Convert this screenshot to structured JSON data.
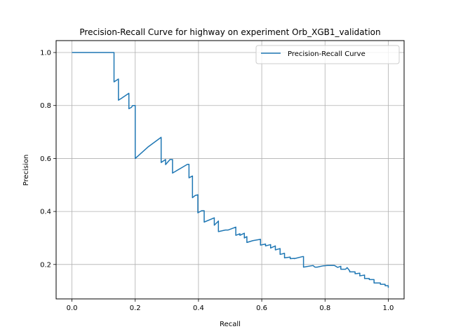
{
  "chart_data": {
    "type": "line",
    "title": "Precision-Recall Curve for highway on experiment Orb_XGB1_validation",
    "xlabel": "Recall",
    "ylabel": "Precision",
    "xlim": [
      -0.05,
      1.05
    ],
    "ylim": [
      0.07,
      1.045
    ],
    "xticks": [
      0.0,
      0.2,
      0.4,
      0.6,
      0.8,
      1.0
    ],
    "xtick_labels": [
      "0.0",
      "0.2",
      "0.4",
      "0.6",
      "0.8",
      "1.0"
    ],
    "yticks": [
      0.2,
      0.4,
      0.6,
      0.8,
      1.0
    ],
    "ytick_labels": [
      "0.2",
      "0.4",
      "0.6",
      "0.8",
      "1.0"
    ],
    "grid": true,
    "legend_position": "top-right",
    "series": [
      {
        "name": "Precision-Recall Curve",
        "color": "#1f77b4",
        "x": [
          0.0,
          0.133,
          0.133,
          0.147,
          0.147,
          0.155,
          0.18,
          0.18,
          0.188,
          0.192,
          0.2,
          0.2,
          0.24,
          0.282,
          0.282,
          0.296,
          0.296,
          0.31,
          0.318,
          0.318,
          0.365,
          0.37,
          0.37,
          0.381,
          0.381,
          0.389,
          0.389,
          0.398,
          0.398,
          0.41,
          0.418,
          0.418,
          0.45,
          0.45,
          0.463,
          0.463,
          0.485,
          0.494,
          0.518,
          0.518,
          0.531,
          0.531,
          0.545,
          0.545,
          0.553,
          0.553,
          0.572,
          0.596,
          0.596,
          0.612,
          0.612,
          0.628,
          0.628,
          0.643,
          0.643,
          0.658,
          0.658,
          0.672,
          0.672,
          0.69,
          0.69,
          0.703,
          0.703,
          0.73,
          0.732,
          0.732,
          0.762,
          0.768,
          0.775,
          0.795,
          0.808,
          0.83,
          0.84,
          0.85,
          0.85,
          0.865,
          0.87,
          0.878,
          0.878,
          0.895,
          0.895,
          0.91,
          0.91,
          0.925,
          0.925,
          0.94,
          0.94,
          0.955,
          0.955,
          0.975,
          0.975,
          0.99,
          0.99,
          1.0,
          1.0
        ],
        "y": [
          1.0,
          1.0,
          0.889,
          0.9,
          0.82,
          0.826,
          0.846,
          0.788,
          0.793,
          0.8,
          0.8,
          0.6,
          0.643,
          0.68,
          0.585,
          0.596,
          0.577,
          0.596,
          0.596,
          0.545,
          0.578,
          0.578,
          0.527,
          0.534,
          0.452,
          0.46,
          0.46,
          0.463,
          0.395,
          0.403,
          0.403,
          0.36,
          0.376,
          0.348,
          0.364,
          0.324,
          0.33,
          0.33,
          0.341,
          0.31,
          0.316,
          0.31,
          0.318,
          0.3,
          0.305,
          0.283,
          0.29,
          0.295,
          0.273,
          0.277,
          0.27,
          0.275,
          0.262,
          0.27,
          0.255,
          0.26,
          0.238,
          0.242,
          0.225,
          0.228,
          0.222,
          0.223,
          0.222,
          0.23,
          0.23,
          0.19,
          0.196,
          0.19,
          0.19,
          0.195,
          0.196,
          0.196,
          0.189,
          0.193,
          0.182,
          0.182,
          0.188,
          0.176,
          0.172,
          0.172,
          0.165,
          0.167,
          0.157,
          0.16,
          0.147,
          0.147,
          0.143,
          0.143,
          0.13,
          0.13,
          0.125,
          0.125,
          0.12,
          0.12,
          0.112
        ]
      }
    ]
  }
}
